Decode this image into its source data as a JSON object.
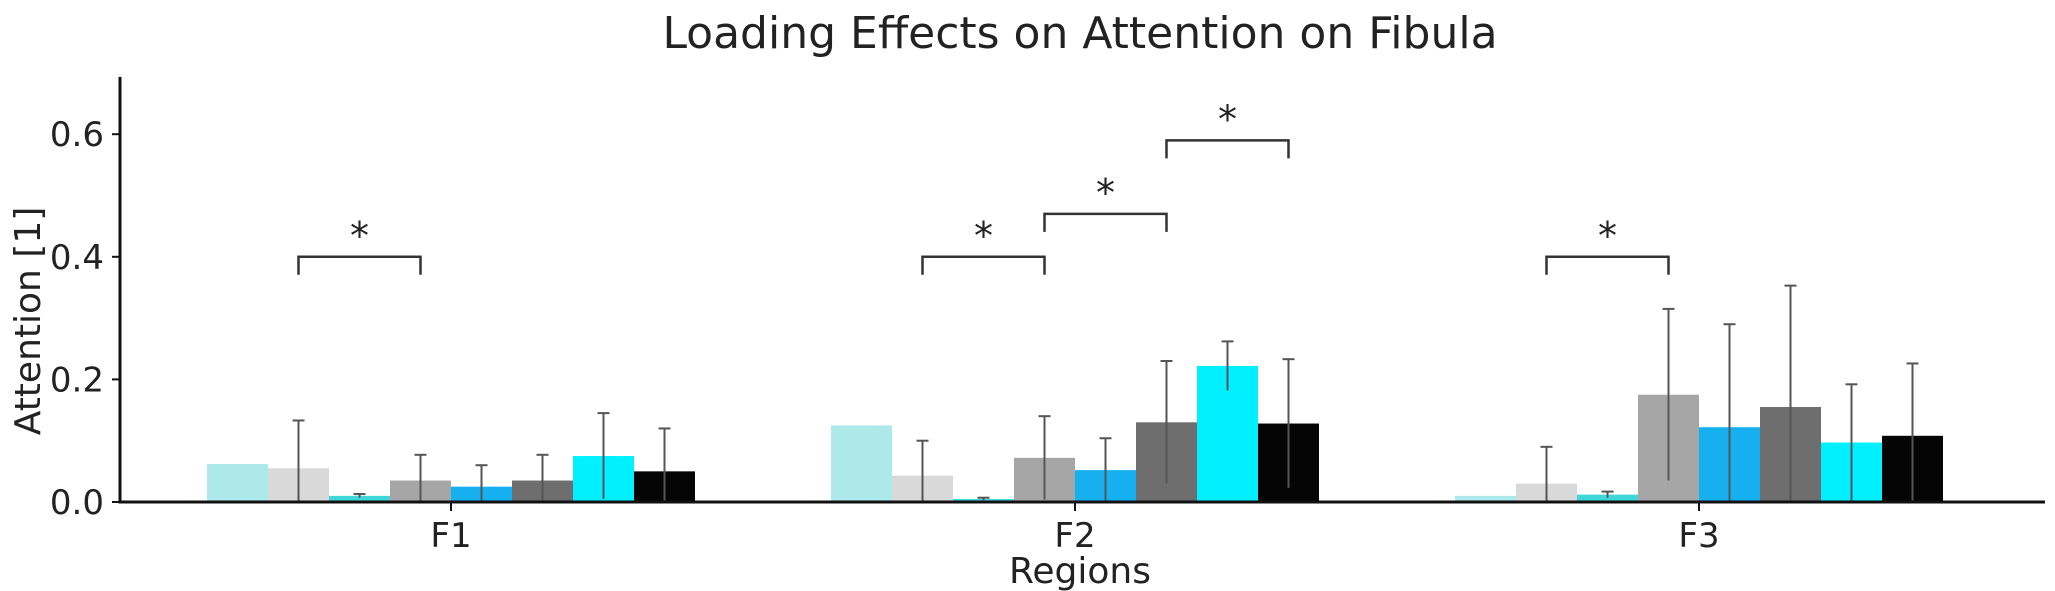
{
  "chart_data": {
    "type": "bar",
    "title": "Loading Effects on Attention on Fibula",
    "xlabel": "Regions",
    "ylabel": "Attention [1]",
    "ylim": [
      0,
      0.7
    ],
    "yticks": [
      "0.0",
      "0.2",
      "0.4",
      "0.6"
    ],
    "ytick_values": [
      0,
      0.2,
      0.4,
      0.6
    ],
    "categories": [
      "F1",
      "F2",
      "F3"
    ],
    "grid": false,
    "legend": "none",
    "series": [
      {
        "color": "#aee9ea",
        "values": [
          0.062,
          0.125,
          0.01
        ],
        "errors": [
          0,
          0,
          0
        ]
      },
      {
        "color": "#d9d9d9",
        "values": [
          0.055,
          0.043,
          0.03
        ],
        "errors": [
          0.078,
          0.057,
          0.06
        ]
      },
      {
        "color": "#3fd7d7",
        "values": [
          0.01,
          0.005,
          0.012
        ],
        "errors": [
          0.003,
          0.002,
          0.005
        ]
      },
      {
        "color": "#a6a6a6",
        "values": [
          0.035,
          0.072,
          0.175
        ],
        "errors": [
          0.042,
          0.068,
          0.14
        ]
      },
      {
        "color": "#16b0f0",
        "values": [
          0.025,
          0.052,
          0.122
        ],
        "errors": [
          0.035,
          0.052,
          0.168
        ]
      },
      {
        "color": "#6e6e6e",
        "values": [
          0.035,
          0.13,
          0.155
        ],
        "errors": [
          0.042,
          0.1,
          0.198
        ]
      },
      {
        "color": "#00f0ff",
        "values": [
          0.075,
          0.222,
          0.097
        ],
        "errors": [
          0.07,
          0.04,
          0.095
        ]
      },
      {
        "color": "#050505",
        "values": [
          0.05,
          0.128,
          0.108
        ],
        "errors": [
          0.07,
          0.105,
          0.118
        ]
      }
    ],
    "significance": [
      {
        "category": "F1",
        "from_bar": 2,
        "to_bar": 4,
        "y": 0.4,
        "label": "*"
      },
      {
        "category": "F2",
        "from_bar": 2,
        "to_bar": 4,
        "y": 0.4,
        "label": "*"
      },
      {
        "category": "F2",
        "from_bar": 4,
        "to_bar": 6,
        "y": 0.47,
        "label": "*"
      },
      {
        "category": "F2",
        "from_bar": 6,
        "to_bar": 8,
        "y": 0.59,
        "label": "*"
      },
      {
        "category": "F3",
        "from_bar": 2,
        "to_bar": 4,
        "y": 0.4,
        "label": "*"
      }
    ]
  }
}
